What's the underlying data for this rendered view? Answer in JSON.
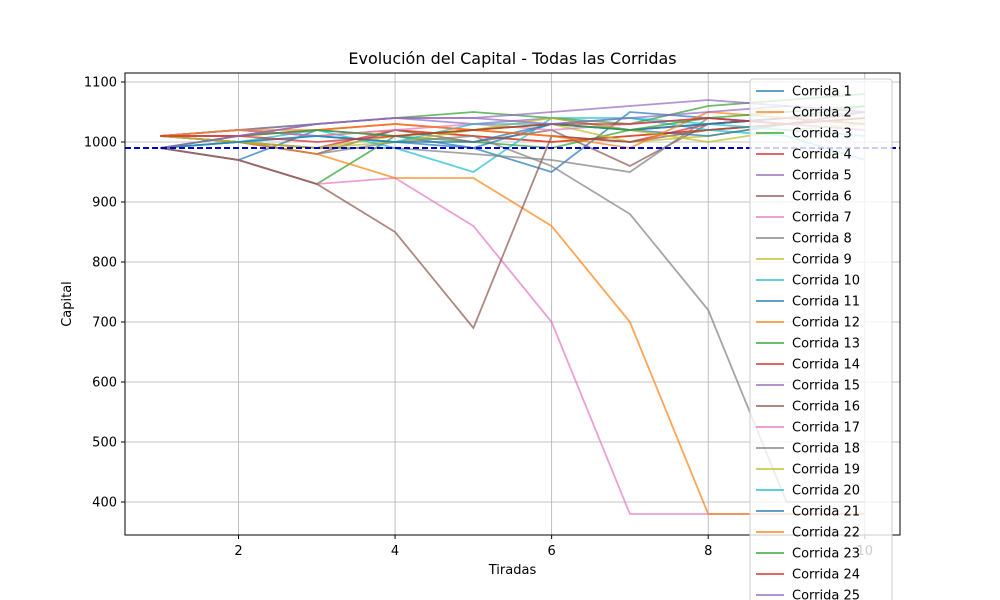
{
  "chart_data": {
    "type": "line",
    "title": "Evolución del Capital - Todas las Corridas",
    "xlabel": "Tiradas",
    "ylabel": "Capital",
    "xlim": [
      0.55,
      10.45
    ],
    "ylim": [
      345,
      1115
    ],
    "xticks": [
      2,
      4,
      6,
      8,
      10
    ],
    "yticks": [
      400,
      500,
      600,
      700,
      800,
      900,
      1000,
      1100
    ],
    "grid": true,
    "legend_position": "top-right",
    "reference_line": {
      "y": 990,
      "color": "#0000cc",
      "style": "dashed"
    },
    "x": [
      1,
      2,
      3,
      4,
      5,
      6,
      7,
      8,
      9,
      10
    ],
    "series": [
      {
        "name": "Corrida 1",
        "color": "#1f77b4",
        "values": [
          990,
          970,
          1020,
          1010,
          990,
          950,
          1050,
          1040,
          1030,
          1020
        ]
      },
      {
        "name": "Corrida 2",
        "color": "#ff7f0e",
        "values": [
          1010,
          1020,
          1010,
          1020,
          1010,
          1000,
          1010,
          1020,
          1030,
          1040
        ]
      },
      {
        "name": "Corrida 3",
        "color": "#2ca02c",
        "values": [
          990,
          970,
          930,
          1010,
          1000,
          990,
          1020,
          1030,
          1040,
          1060
        ]
      },
      {
        "name": "Corrida 4",
        "color": "#d62728",
        "values": [
          1010,
          1000,
          990,
          1020,
          1010,
          1000,
          1010,
          1020,
          1030,
          1050
        ]
      },
      {
        "name": "Corrida 5",
        "color": "#9467bd",
        "values": [
          990,
          1010,
          1030,
          1040,
          1030,
          1040,
          1020,
          1030,
          1040,
          1050
        ]
      },
      {
        "name": "Corrida 6",
        "color": "#8c564b",
        "values": [
          1010,
          1000,
          980,
          1020,
          1000,
          1020,
          960,
          1030,
          1040,
          1030
        ]
      },
      {
        "name": "Corrida 7",
        "color": "#e377c2",
        "values": [
          990,
          970,
          930,
          940,
          860,
          700,
          380,
          380,
          380,
          380
        ]
      },
      {
        "name": "Corrida 8",
        "color": "#7f7f7f",
        "values": [
          1010,
          1000,
          980,
          1000,
          1010,
          960,
          880,
          720,
          400,
          400
        ]
      },
      {
        "name": "Corrida 9",
        "color": "#bcbd22",
        "values": [
          1010,
          1000,
          990,
          1000,
          1020,
          1030,
          1000,
          1010,
          1030,
          1040
        ]
      },
      {
        "name": "Corrida 10",
        "color": "#17becf",
        "values": [
          990,
          1000,
          1020,
          990,
          950,
          1040,
          1040,
          1020,
          1010,
          970
        ]
      },
      {
        "name": "Corrida 11",
        "color": "#1f77b4",
        "values": [
          1010,
          1020,
          1010,
          1000,
          990,
          1030,
          1020,
          1010,
          1030,
          1040
        ]
      },
      {
        "name": "Corrida 12",
        "color": "#ff7f0e",
        "values": [
          990,
          1000,
          980,
          940,
          940,
          860,
          700,
          380,
          380,
          380
        ]
      },
      {
        "name": "Corrida 13",
        "color": "#2ca02c",
        "values": [
          1010,
          1020,
          1030,
          1040,
          1050,
          1040,
          1030,
          1060,
          1070,
          1080
        ]
      },
      {
        "name": "Corrida 14",
        "color": "#d62728",
        "values": [
          1010,
          1010,
          1020,
          1030,
          1020,
          1010,
          1000,
          1030,
          1040,
          1030
        ]
      },
      {
        "name": "Corrida 15",
        "color": "#9467bd",
        "values": [
          1010,
          1020,
          1030,
          1040,
          1040,
          1050,
          1060,
          1070,
          1060,
          1050
        ]
      },
      {
        "name": "Corrida 16",
        "color": "#8c564b",
        "values": [
          990,
          970,
          930,
          850,
          690,
          1010,
          1000,
          1020,
          1030,
          1040
        ]
      },
      {
        "name": "Corrida 17",
        "color": "#e377c2",
        "values": [
          1010,
          1020,
          1010,
          1020,
          1030,
          1020,
          1030,
          1040,
          1030,
          1020
        ]
      },
      {
        "name": "Corrida 18",
        "color": "#7f7f7f",
        "values": [
          1010,
          1000,
          990,
          990,
          980,
          970,
          950,
          1040,
          1030,
          1050
        ]
      },
      {
        "name": "Corrida 19",
        "color": "#bcbd22",
        "values": [
          1010,
          1000,
          990,
          1010,
          1020,
          1040,
          1020,
          1000,
          1020,
          1030
        ]
      },
      {
        "name": "Corrida 20",
        "color": "#17becf",
        "values": [
          990,
          1000,
          1010,
          1000,
          1030,
          1030,
          1040,
          1030,
          1020,
          1010
        ]
      },
      {
        "name": "Corrida 21",
        "color": "#1f77b4",
        "values": [
          990,
          1000,
          1010,
          1000,
          1000,
          1030,
          1020,
          1030,
          1040,
          1030
        ]
      },
      {
        "name": "Corrida 22",
        "color": "#ff7f0e",
        "values": [
          1010,
          1020,
          1020,
          1030,
          1020,
          1010,
          990,
          1050,
          1040,
          1030
        ]
      },
      {
        "name": "Corrida 23",
        "color": "#2ca02c",
        "values": [
          990,
          1010,
          1020,
          1010,
          1020,
          1030,
          1020,
          1040,
          1050,
          1060
        ]
      },
      {
        "name": "Corrida 24",
        "color": "#d62728",
        "values": [
          1010,
          1010,
          1000,
          1010,
          1020,
          1030,
          1030,
          1040,
          1030,
          1040
        ]
      },
      {
        "name": "Corrida 25",
        "color": "#9467bd",
        "values": [
          990,
          1010,
          1030,
          1040,
          1040,
          1030,
          1040,
          1050,
          1060,
          1050
        ]
      }
    ]
  }
}
